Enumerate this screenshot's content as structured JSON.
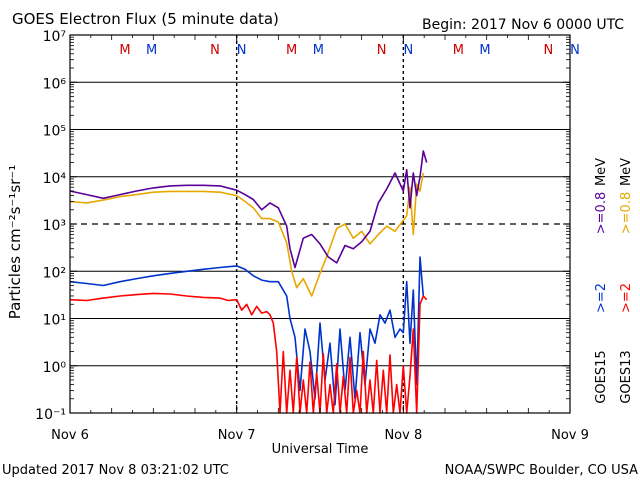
{
  "chart_data": {
    "type": "line",
    "title": "GOES Electron Flux (5 minute data)",
    "begin_label": "Begin: 2017 Nov 6 0000 UTC",
    "xlabel": "Universal Time",
    "ylabel": "Particles cm⁻²s⁻¹sr⁻¹",
    "yscale": "log",
    "ylim_exponent": [
      -1,
      7
    ],
    "xlim_days": [
      0,
      3
    ],
    "x_ticks": [
      "Nov 6",
      "Nov 7",
      "Nov 8",
      "Nov 9"
    ],
    "y_ticks": [
      "10⁻¹",
      "10⁰",
      "10¹",
      "10²",
      "10³",
      "10⁴",
      "10⁵",
      "10⁶",
      "10⁷"
    ],
    "threshold_exponent": 3,
    "event_markers": [
      {
        "label": "M",
        "x_day": 0.33,
        "color": "#cc0000"
      },
      {
        "label": "M",
        "x_day": 0.49,
        "color": "#0033cc"
      },
      {
        "label": "N",
        "x_day": 0.87,
        "color": "#cc0000"
      },
      {
        "label": "N",
        "x_day": 1.03,
        "color": "#0033cc"
      },
      {
        "label": "M",
        "x_day": 1.33,
        "color": "#cc0000"
      },
      {
        "label": "M",
        "x_day": 1.49,
        "color": "#0033cc"
      },
      {
        "label": "N",
        "x_day": 1.87,
        "color": "#cc0000"
      },
      {
        "label": "N",
        "x_day": 2.03,
        "color": "#0033cc"
      },
      {
        "label": "M",
        "x_day": 2.33,
        "color": "#cc0000"
      },
      {
        "label": "M",
        "x_day": 2.49,
        "color": "#0033cc"
      },
      {
        "label": "N",
        "x_day": 2.87,
        "color": "#cc0000"
      },
      {
        "label": "N",
        "x_day": 3.03,
        "color": "#0033cc"
      }
    ],
    "day_boundaries": [
      1.0,
      2.0
    ],
    "series": [
      {
        "name": ">=0.8 MeV GOES15",
        "color": "#5a0096",
        "x": [
          0,
          0.1,
          0.2,
          0.3,
          0.4,
          0.5,
          0.6,
          0.7,
          0.8,
          0.9,
          1.0,
          1.05,
          1.1,
          1.15,
          1.2,
          1.25,
          1.3,
          1.32,
          1.35,
          1.4,
          1.45,
          1.5,
          1.55,
          1.6,
          1.65,
          1.7,
          1.75,
          1.8,
          1.85,
          1.9,
          1.95,
          2.0,
          2.02,
          2.04,
          2.06,
          2.08,
          2.1,
          2.12,
          2.14
        ],
        "y": [
          5000,
          4200,
          3500,
          4200,
          5000,
          5800,
          6400,
          6600,
          6600,
          6400,
          5200,
          4200,
          3300,
          2000,
          2800,
          2200,
          900,
          300,
          120,
          500,
          600,
          380,
          200,
          150,
          350,
          300,
          420,
          700,
          2800,
          5500,
          12000,
          5000,
          14000,
          2200,
          12000,
          4000,
          10000,
          35000,
          20000
        ]
      },
      {
        "name": ">=0.8 MeV GOES13",
        "color": "#e8a800",
        "x": [
          0,
          0.1,
          0.2,
          0.3,
          0.4,
          0.5,
          0.6,
          0.7,
          0.8,
          0.9,
          1.0,
          1.05,
          1.1,
          1.15,
          1.2,
          1.25,
          1.3,
          1.33,
          1.36,
          1.4,
          1.45,
          1.5,
          1.55,
          1.6,
          1.65,
          1.7,
          1.75,
          1.8,
          1.85,
          1.9,
          1.95,
          2.0,
          2.02,
          2.04,
          2.06,
          2.08,
          2.1,
          2.12
        ],
        "y": [
          3000,
          2800,
          3200,
          3800,
          4200,
          4700,
          4900,
          4900,
          4900,
          4700,
          4000,
          3000,
          2200,
          1300,
          1300,
          1100,
          400,
          100,
          45,
          70,
          30,
          90,
          250,
          800,
          1000,
          500,
          700,
          380,
          600,
          900,
          700,
          1200,
          1500,
          6000,
          600,
          7000,
          5000,
          12000
        ]
      },
      {
        "name": ">=2 MeV GOES15",
        "color": "#0033cc",
        "x": [
          0,
          0.1,
          0.2,
          0.3,
          0.4,
          0.5,
          0.6,
          0.7,
          0.8,
          0.9,
          1.0,
          1.05,
          1.1,
          1.15,
          1.2,
          1.25,
          1.3,
          1.32,
          1.35,
          1.38,
          1.41,
          1.44,
          1.47,
          1.5,
          1.53,
          1.56,
          1.59,
          1.62,
          1.65,
          1.68,
          1.71,
          1.74,
          1.77,
          1.8,
          1.83,
          1.86,
          1.89,
          1.92,
          1.95,
          1.98,
          2.0,
          2.02,
          2.04,
          2.06,
          2.08,
          2.1,
          2.12
        ],
        "y": [
          60,
          55,
          50,
          60,
          70,
          80,
          90,
          100,
          110,
          120,
          130,
          110,
          80,
          65,
          60,
          60,
          30,
          10,
          4,
          0.3,
          6,
          2,
          0.2,
          8,
          0.5,
          3,
          0.15,
          6,
          0.3,
          4,
          0.2,
          5,
          0.4,
          6,
          3,
          12,
          8,
          15,
          4,
          6,
          5,
          60,
          3,
          40,
          0.4,
          200,
          30
        ]
      },
      {
        "name": ">=2 MeV GOES13",
        "color": "#ff0000",
        "x": [
          0,
          0.1,
          0.2,
          0.3,
          0.4,
          0.5,
          0.6,
          0.7,
          0.8,
          0.9,
          0.95,
          1.0,
          1.03,
          1.06,
          1.09,
          1.12,
          1.15,
          1.18,
          1.2,
          1.22,
          1.24,
          1.26,
          1.28,
          1.3,
          1.32,
          1.34,
          1.36,
          1.38,
          1.4,
          1.42,
          1.44,
          1.46,
          1.48,
          1.5,
          1.52,
          1.54,
          1.56,
          1.58,
          1.6,
          1.62,
          1.64,
          1.66,
          1.68,
          1.7,
          1.72,
          1.74,
          1.76,
          1.78,
          1.8,
          1.82,
          1.84,
          1.86,
          1.88,
          1.9,
          1.92,
          1.94,
          1.96,
          1.98,
          2.0,
          2.02,
          2.04,
          2.06,
          2.08,
          2.1,
          2.12,
          2.14
        ],
        "y": [
          25,
          24,
          27,
          30,
          32,
          34,
          33,
          30,
          28,
          27,
          24,
          25,
          15,
          20,
          12,
          18,
          13,
          14,
          12,
          8,
          2,
          0.1,
          2,
          0.1,
          0.8,
          0.1,
          1.5,
          0.1,
          0.5,
          0.1,
          1.2,
          0.1,
          0.7,
          0.1,
          1.8,
          0.1,
          0.4,
          0.1,
          1.1,
          0.1,
          0.6,
          0.1,
          1.5,
          0.1,
          0.3,
          0.1,
          2,
          0.1,
          0.5,
          0.1,
          1.3,
          0.1,
          0.8,
          0.1,
          1.7,
          0.1,
          0.4,
          0.1,
          1.0,
          0.1,
          0.6,
          6,
          0.1,
          20,
          30,
          25
        ]
      }
    ]
  },
  "legend": {
    "groups": [
      {
        "satellite": "GOES15",
        "items": [
          {
            "text": ">=2",
            "color": "#0033cc"
          },
          {
            "text": ">=0.8",
            "color": "#5a0096"
          }
        ]
      },
      {
        "satellite": "GOES13",
        "items": [
          {
            "text": ">=2",
            "color": "#ff0000"
          },
          {
            "text": ">=0.8",
            "color": "#e8a800"
          }
        ]
      }
    ],
    "unit": "MeV"
  },
  "footer": {
    "updated": "Updated 2017 Nov  8 03:21:02 UTC",
    "source": "NOAA/SWPC Boulder, CO USA"
  }
}
